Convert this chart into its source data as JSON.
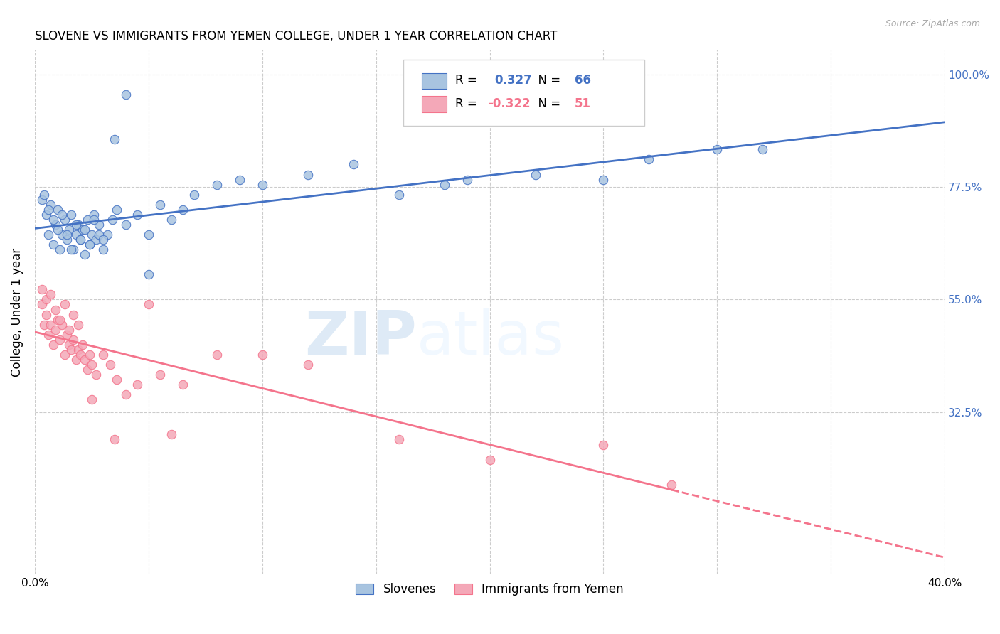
{
  "title": "SLOVENE VS IMMIGRANTS FROM YEMEN COLLEGE, UNDER 1 YEAR CORRELATION CHART",
  "source": "Source: ZipAtlas.com",
  "ylabel": "College, Under 1 year",
  "x_min": 0.0,
  "x_max": 0.4,
  "y_min": 0.0,
  "y_max": 1.05,
  "x_ticks": [
    0.0,
    0.05,
    0.1,
    0.15,
    0.2,
    0.25,
    0.3,
    0.35,
    0.4
  ],
  "y_ticks": [
    0.325,
    0.55,
    0.775,
    1.0
  ],
  "y_tick_labels": [
    "32.5%",
    "55.0%",
    "77.5%",
    "100.0%"
  ],
  "blue_R": 0.327,
  "blue_N": 66,
  "pink_R": -0.322,
  "pink_N": 51,
  "blue_color": "#a8c4e0",
  "pink_color": "#f4a8b8",
  "blue_line_color": "#4472c4",
  "pink_line_color": "#f4748c",
  "watermark_zip": "ZIP",
  "watermark_atlas": "atlas",
  "blue_scatter_x": [
    0.005,
    0.006,
    0.007,
    0.008,
    0.009,
    0.01,
    0.011,
    0.012,
    0.013,
    0.014,
    0.015,
    0.016,
    0.017,
    0.018,
    0.019,
    0.02,
    0.021,
    0.022,
    0.023,
    0.024,
    0.025,
    0.026,
    0.027,
    0.028,
    0.03,
    0.032,
    0.034,
    0.036,
    0.04,
    0.045,
    0.05,
    0.055,
    0.06,
    0.065,
    0.07,
    0.08,
    0.09,
    0.1,
    0.12,
    0.14,
    0.16,
    0.19,
    0.22,
    0.25,
    0.27,
    0.3,
    0.32,
    0.003,
    0.004,
    0.006,
    0.008,
    0.01,
    0.012,
    0.014,
    0.016,
    0.018,
    0.02,
    0.022,
    0.024,
    0.026,
    0.028,
    0.03,
    0.035,
    0.04,
    0.05,
    0.18
  ],
  "blue_scatter_y": [
    0.72,
    0.68,
    0.74,
    0.66,
    0.7,
    0.73,
    0.65,
    0.68,
    0.71,
    0.67,
    0.69,
    0.72,
    0.65,
    0.68,
    0.7,
    0.67,
    0.69,
    0.64,
    0.71,
    0.66,
    0.68,
    0.72,
    0.67,
    0.7,
    0.65,
    0.68,
    0.71,
    0.73,
    0.7,
    0.72,
    0.68,
    0.74,
    0.71,
    0.73,
    0.76,
    0.78,
    0.79,
    0.78,
    0.8,
    0.82,
    0.76,
    0.79,
    0.8,
    0.79,
    0.83,
    0.85,
    0.85,
    0.75,
    0.76,
    0.73,
    0.71,
    0.69,
    0.72,
    0.68,
    0.65,
    0.7,
    0.67,
    0.69,
    0.66,
    0.71,
    0.68,
    0.67,
    0.87,
    0.96,
    0.6,
    0.78
  ],
  "pink_scatter_x": [
    0.003,
    0.004,
    0.005,
    0.006,
    0.007,
    0.008,
    0.009,
    0.01,
    0.011,
    0.012,
    0.013,
    0.014,
    0.015,
    0.016,
    0.017,
    0.018,
    0.019,
    0.02,
    0.021,
    0.022,
    0.023,
    0.024,
    0.025,
    0.027,
    0.03,
    0.033,
    0.036,
    0.04,
    0.045,
    0.05,
    0.055,
    0.065,
    0.08,
    0.1,
    0.12,
    0.16,
    0.2,
    0.25,
    0.003,
    0.005,
    0.007,
    0.009,
    0.011,
    0.013,
    0.015,
    0.017,
    0.019,
    0.025,
    0.035,
    0.06,
    0.28
  ],
  "pink_scatter_y": [
    0.54,
    0.5,
    0.52,
    0.48,
    0.5,
    0.46,
    0.49,
    0.51,
    0.47,
    0.5,
    0.44,
    0.48,
    0.46,
    0.45,
    0.47,
    0.43,
    0.45,
    0.44,
    0.46,
    0.43,
    0.41,
    0.44,
    0.42,
    0.4,
    0.44,
    0.42,
    0.39,
    0.36,
    0.38,
    0.54,
    0.4,
    0.38,
    0.44,
    0.44,
    0.42,
    0.27,
    0.23,
    0.26,
    0.57,
    0.55,
    0.56,
    0.53,
    0.51,
    0.54,
    0.49,
    0.52,
    0.5,
    0.35,
    0.27,
    0.28,
    0.18
  ]
}
